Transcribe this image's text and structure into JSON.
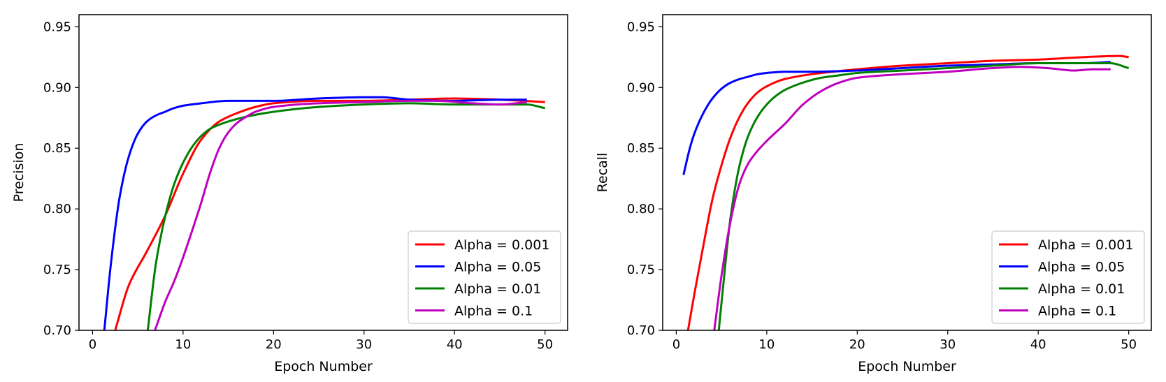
{
  "chart_data": [
    {
      "type": "line",
      "xlabel": "Epoch Number",
      "ylabel": "Precision",
      "xlim": [
        -1.5,
        52.5
      ],
      "ylim": [
        0.7,
        0.96
      ],
      "xticks": [
        0,
        10,
        20,
        30,
        40,
        50
      ],
      "yticks": [
        0.7,
        0.75,
        0.8,
        0.85,
        0.9,
        0.95
      ],
      "grid": false,
      "legend_position": "lower-right",
      "series": [
        {
          "name": "Alpha = 0.001",
          "color": "#ff0000",
          "x": [
            2.5,
            4,
            6,
            8,
            10,
            12,
            14,
            16,
            18,
            20,
            25,
            30,
            35,
            40,
            45,
            50
          ],
          "y": [
            0.7,
            0.737,
            0.765,
            0.794,
            0.829,
            0.857,
            0.872,
            0.879,
            0.884,
            0.887,
            0.889,
            0.889,
            0.89,
            0.891,
            0.89,
            0.888
          ]
        },
        {
          "name": "Alpha = 0.05",
          "color": "#0000ff",
          "x": [
            1.3,
            2,
            3,
            4,
            5,
            6,
            7,
            8,
            9,
            10,
            12,
            15,
            20,
            25,
            30,
            32,
            35,
            40,
            45,
            48
          ],
          "y": [
            0.7,
            0.753,
            0.81,
            0.843,
            0.862,
            0.872,
            0.877,
            0.88,
            0.883,
            0.885,
            0.887,
            0.889,
            0.889,
            0.891,
            0.892,
            0.892,
            0.89,
            0.889,
            0.89,
            0.89
          ]
        },
        {
          "name": "Alpha = 0.01",
          "color": "#008000",
          "x": [
            6.1,
            7,
            8,
            9,
            10,
            11,
            12,
            13,
            15,
            17,
            20,
            25,
            30,
            35,
            40,
            45,
            48,
            50
          ],
          "y": [
            0.7,
            0.755,
            0.793,
            0.82,
            0.838,
            0.851,
            0.86,
            0.866,
            0.872,
            0.876,
            0.88,
            0.884,
            0.886,
            0.887,
            0.886,
            0.886,
            0.886,
            0.883
          ]
        },
        {
          "name": "Alpha = 0.1",
          "color": "#bf00bf",
          "x": [
            6.9,
            8,
            9,
            10,
            11,
            12,
            13,
            14,
            15,
            16,
            17,
            18,
            20,
            25,
            30,
            35,
            38,
            42,
            45,
            48
          ],
          "y": [
            0.7,
            0.723,
            0.74,
            0.76,
            0.782,
            0.805,
            0.83,
            0.85,
            0.863,
            0.871,
            0.876,
            0.88,
            0.884,
            0.887,
            0.888,
            0.889,
            0.889,
            0.887,
            0.886,
            0.888
          ]
        }
      ]
    },
    {
      "type": "line",
      "xlabel": "Epoch Number",
      "ylabel": "Recall",
      "xlim": [
        -1.5,
        52.5
      ],
      "ylim": [
        0.7,
        0.96
      ],
      "xticks": [
        0,
        10,
        20,
        30,
        40,
        50
      ],
      "yticks": [
        0.7,
        0.75,
        0.8,
        0.85,
        0.9,
        0.95
      ],
      "grid": false,
      "legend_position": "lower-right",
      "series": [
        {
          "name": "Alpha = 0.001",
          "color": "#ff0000",
          "x": [
            1.3,
            2,
            3,
            4,
            5,
            6,
            7,
            8,
            9,
            10,
            12,
            15,
            20,
            25,
            30,
            35,
            40,
            45,
            49,
            50
          ],
          "y": [
            0.7,
            0.73,
            0.77,
            0.808,
            0.836,
            0.859,
            0.876,
            0.888,
            0.896,
            0.901,
            0.907,
            0.911,
            0.915,
            0.918,
            0.92,
            0.922,
            0.923,
            0.925,
            0.926,
            0.925
          ]
        },
        {
          "name": "Alpha = 0.05",
          "color": "#0000ff",
          "x": [
            0.8,
            1.5,
            2,
            3,
            4,
            5,
            6,
            7,
            8,
            9,
            10,
            12,
            15,
            20,
            25,
            30,
            35,
            40,
            45,
            48
          ],
          "y": [
            0.828,
            0.85,
            0.862,
            0.879,
            0.891,
            0.899,
            0.904,
            0.907,
            0.909,
            0.911,
            0.912,
            0.913,
            0.913,
            0.914,
            0.916,
            0.918,
            0.919,
            0.92,
            0.92,
            0.921
          ]
        },
        {
          "name": "Alpha = 0.01",
          "color": "#008000",
          "x": [
            4.7,
            5.5,
            6,
            7,
            8,
            9,
            10,
            11,
            12,
            14,
            16,
            18,
            20,
            25,
            30,
            35,
            40,
            45,
            48,
            50
          ],
          "y": [
            0.7,
            0.76,
            0.793,
            0.836,
            0.861,
            0.876,
            0.886,
            0.893,
            0.898,
            0.904,
            0.908,
            0.91,
            0.912,
            0.914,
            0.916,
            0.918,
            0.92,
            0.92,
            0.92,
            0.916
          ]
        },
        {
          "name": "Alpha = 0.1",
          "color": "#bf00bf",
          "x": [
            4.2,
            5,
            6,
            7,
            8,
            9,
            10,
            12,
            14,
            16,
            18,
            20,
            25,
            30,
            35,
            38,
            41,
            44,
            46,
            48
          ],
          "y": [
            0.7,
            0.745,
            0.79,
            0.821,
            0.838,
            0.848,
            0.856,
            0.87,
            0.886,
            0.897,
            0.904,
            0.908,
            0.911,
            0.913,
            0.916,
            0.917,
            0.916,
            0.914,
            0.915,
            0.915
          ]
        }
      ]
    }
  ]
}
